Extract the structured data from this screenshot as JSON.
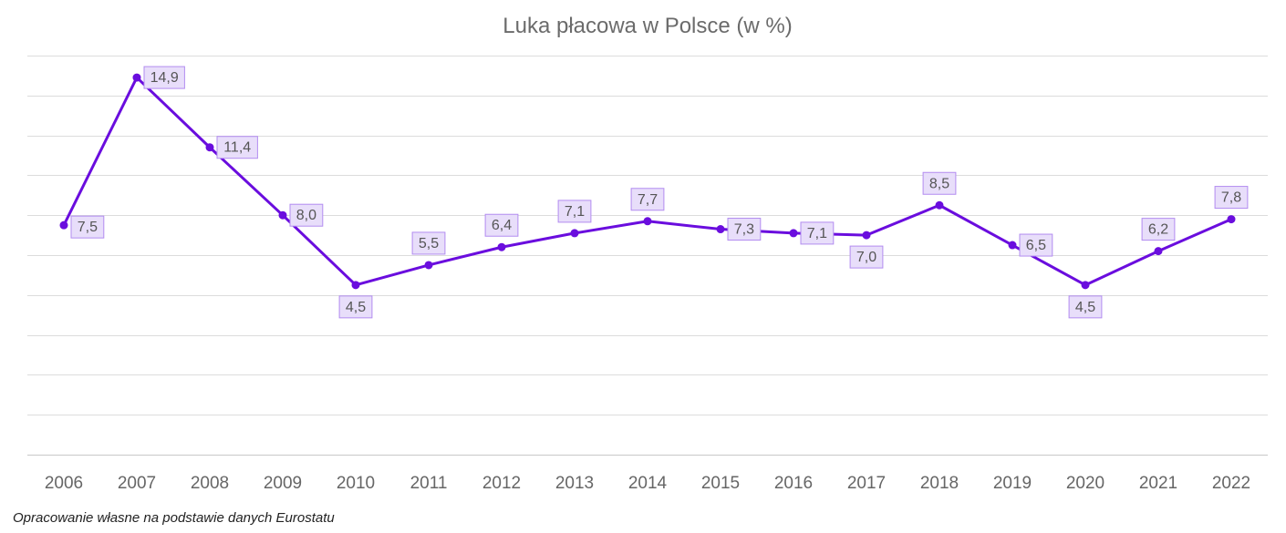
{
  "chart_data": {
    "type": "line",
    "title": "Luka płacowa w Polsce (w %)",
    "xlabel": "",
    "ylabel": "",
    "categories": [
      "2006",
      "2007",
      "2008",
      "2009",
      "2010",
      "2011",
      "2012",
      "2013",
      "2014",
      "2015",
      "2016",
      "2017",
      "2018",
      "2019",
      "2020",
      "2021",
      "2022"
    ],
    "series": [
      {
        "values": [
          7.5,
          14.9,
          11.4,
          8.0,
          4.5,
          5.5,
          6.4,
          7.1,
          7.7,
          7.3,
          7.1,
          7.0,
          8.5,
          6.5,
          4.5,
          6.2,
          7.8
        ],
        "data_labels": [
          "7,5",
          "14,9",
          "11,4",
          "8,0",
          "4,5",
          "5,5",
          "6,4",
          "7,1",
          "7,7",
          "7,3",
          "7,1",
          "7,0",
          "8,5",
          "6,5",
          "4,5",
          "6,2",
          "7,8"
        ],
        "color": "#6a0dde"
      }
    ],
    "ylim": [
      -4,
      16
    ],
    "y_gridline_step": 2,
    "grid": true,
    "y_tick_labels_shown": false,
    "label_box_fill": "#e8defa",
    "label_box_border": "#b28cf0"
  },
  "source_note": "Opracowanie własne na podstawie danych Eurostatu"
}
